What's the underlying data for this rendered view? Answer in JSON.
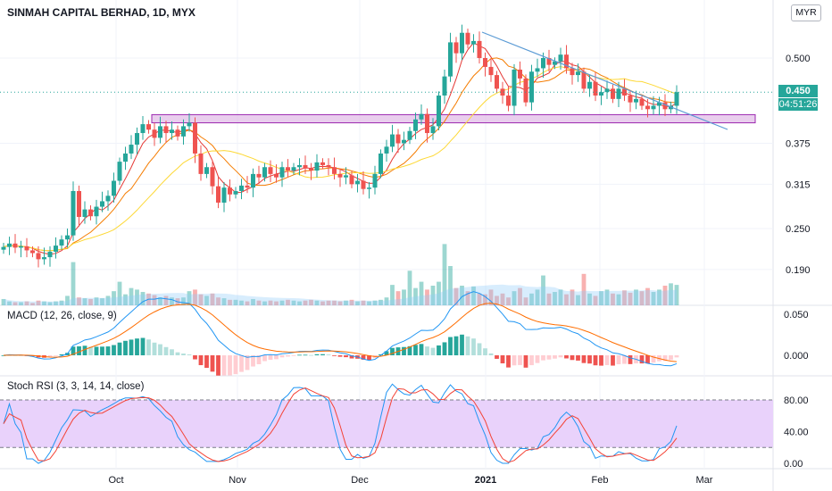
{
  "header": {
    "title": "SINMAH CAPITAL BERHAD, 1D, MYX",
    "currency": "MYR"
  },
  "price_tags": {
    "last": "0.450",
    "countdown": "04:51:26"
  },
  "colors": {
    "up": "#26a69a",
    "down": "#ef5350",
    "ma_fast": "#e53935",
    "ma_mid": "#f57c00",
    "ma_slow": "#fdd835",
    "trendline": "#5b9bd5",
    "zone_fill": "#e1bee7",
    "zone_stroke": "#9c27b0",
    "macd": "#2196f3",
    "signal": "#ff6d00",
    "stoch_k": "#2196f3",
    "stoch_d": "#f44336",
    "stoch_band": "#e9d2fb"
  },
  "x_axis": {
    "labels": [
      {
        "text": "Oct",
        "x": 130
      },
      {
        "text": "Nov",
        "x": 266
      },
      {
        "text": "Dec",
        "x": 403
      },
      {
        "text": "2021",
        "x": 544,
        "bold": true
      },
      {
        "text": "Feb",
        "x": 672
      },
      {
        "text": "Mar",
        "x": 789
      }
    ]
  },
  "panes": {
    "macd_title": "MACD (12, 26, close, 9)",
    "stoch_title": "Stoch RSI (3, 3, 14, 14, close)"
  },
  "chart_data": [
    {
      "type": "candlestick",
      "title": "SINMAH CAPITAL BERHAD, 1D, MYX",
      "yticks": [
        "0.500",
        "0.375",
        "0.315",
        "0.250",
        "0.190"
      ],
      "ytick_values": [
        0.5,
        0.375,
        0.315,
        0.25,
        0.19
      ],
      "last_price": 0.45,
      "resistance_zone": [
        0.405,
        0.417
      ],
      "closes": [
        0.223,
        0.228,
        0.222,
        0.224,
        0.218,
        0.214,
        0.205,
        0.208,
        0.216,
        0.225,
        0.234,
        0.24,
        0.305,
        0.267,
        0.278,
        0.268,
        0.282,
        0.29,
        0.298,
        0.32,
        0.348,
        0.36,
        0.373,
        0.39,
        0.403,
        0.395,
        0.383,
        0.4,
        0.39,
        0.395,
        0.385,
        0.4,
        0.405,
        0.36,
        0.33,
        0.34,
        0.312,
        0.288,
        0.31,
        0.3,
        0.305,
        0.313,
        0.31,
        0.33,
        0.325,
        0.34,
        0.33,
        0.325,
        0.34,
        0.335,
        0.34,
        0.343,
        0.338,
        0.335,
        0.347,
        0.343,
        0.34,
        0.33,
        0.325,
        0.328,
        0.315,
        0.32,
        0.308,
        0.31,
        0.33,
        0.36,
        0.37,
        0.388,
        0.375,
        0.38,
        0.393,
        0.41,
        0.418,
        0.39,
        0.4,
        0.445,
        0.473,
        0.523,
        0.507,
        0.537,
        0.52,
        0.525,
        0.5,
        0.487,
        0.475,
        0.455,
        0.445,
        0.43,
        0.483,
        0.47,
        0.435,
        0.48,
        0.485,
        0.5,
        0.49,
        0.495,
        0.505,
        0.485,
        0.475,
        0.48,
        0.455,
        0.465,
        0.445,
        0.45,
        0.455,
        0.44,
        0.455,
        0.445,
        0.435,
        0.44,
        0.43,
        0.425,
        0.43,
        0.435,
        0.425,
        0.43,
        0.45
      ],
      "volumes": [
        0.08,
        0.05,
        0.04,
        0.04,
        0.05,
        0.03,
        0.06,
        0.05,
        0.04,
        0.05,
        0.06,
        0.12,
        0.55,
        0.1,
        0.09,
        0.08,
        0.1,
        0.09,
        0.12,
        0.18,
        0.3,
        0.14,
        0.22,
        0.2,
        0.17,
        0.15,
        0.13,
        0.1,
        0.12,
        0.1,
        0.09,
        0.1,
        0.18,
        0.2,
        0.14,
        0.12,
        0.15,
        0.1,
        0.09,
        0.07,
        0.07,
        0.06,
        0.05,
        0.08,
        0.06,
        0.05,
        0.06,
        0.05,
        0.06,
        0.07,
        0.06,
        0.05,
        0.06,
        0.07,
        0.06,
        0.05,
        0.06,
        0.06,
        0.05,
        0.06,
        0.07,
        0.05,
        0.06,
        0.05,
        0.06,
        0.07,
        0.1,
        0.26,
        0.18,
        0.2,
        0.44,
        0.22,
        0.3,
        0.2,
        0.25,
        0.3,
        0.78,
        0.5,
        0.22,
        0.25,
        0.18,
        0.24,
        0.15,
        0.14,
        0.2,
        0.12,
        0.15,
        0.1,
        0.18,
        0.22,
        0.1,
        0.15,
        0.2,
        0.38,
        0.15,
        0.17,
        0.2,
        0.14,
        0.2,
        0.13,
        0.4,
        0.15,
        0.12,
        0.18,
        0.2,
        0.15,
        0.14,
        0.19,
        0.16,
        0.2,
        0.18,
        0.22,
        0.17,
        0.2,
        0.25,
        0.28,
        0.26
      ]
    },
    {
      "type": "line",
      "title": "MACD (12, 26, close, 9)",
      "yticks": [
        "0.050",
        "0.000"
      ],
      "ytick_values": [
        0.05,
        0.0
      ]
    },
    {
      "type": "line",
      "title": "Stoch RSI (3, 3, 14, 14, close)",
      "yticks": [
        "80.00",
        "40.00",
        "0.00"
      ],
      "ytick_values": [
        80,
        40,
        0
      ],
      "bands": [
        20,
        80
      ]
    }
  ]
}
